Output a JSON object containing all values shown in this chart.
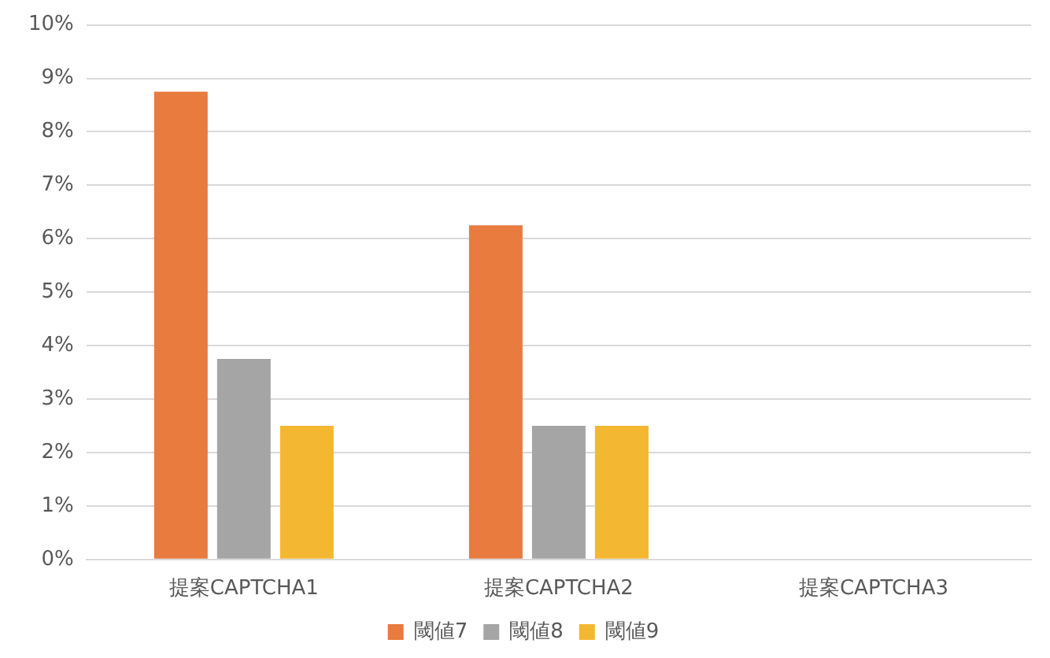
{
  "chart_data": {
    "type": "bar",
    "categories": [
      "提案CAPTCHA1",
      "提案CAPTCHA2",
      "提案CAPTCHA3"
    ],
    "series": [
      {
        "name": "閾値7",
        "color": "#e87b3d",
        "values": [
          8.75,
          6.25,
          0
        ]
      },
      {
        "name": "閾値8",
        "color": "#a5a5a5",
        "values": [
          3.75,
          2.5,
          0
        ]
      },
      {
        "name": "閾値9",
        "color": "#f4b731",
        "values": [
          2.5,
          2.5,
          0
        ]
      }
    ],
    "ylim": [
      0,
      10
    ],
    "yticks": [
      {
        "value": 0,
        "label": "0%"
      },
      {
        "value": 1,
        "label": "1%"
      },
      {
        "value": 2,
        "label": "2%"
      },
      {
        "value": 3,
        "label": "3%"
      },
      {
        "value": 4,
        "label": "4%"
      },
      {
        "value": 5,
        "label": "5%"
      },
      {
        "value": 6,
        "label": "6%"
      },
      {
        "value": 7,
        "label": "7%"
      },
      {
        "value": 8,
        "label": "8%"
      },
      {
        "value": 9,
        "label": "9%"
      },
      {
        "value": 10,
        "label": "10%"
      }
    ],
    "grid": "y",
    "legend": "bottom"
  }
}
